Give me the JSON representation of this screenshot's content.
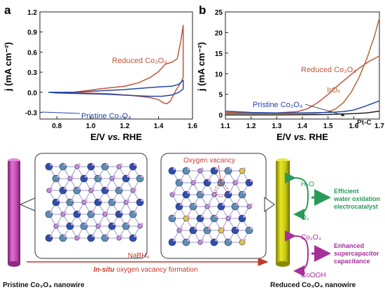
{
  "colors": {
    "reduced": "#c0573a",
    "pristine": "#2646a8",
    "iro": "#b06a38",
    "ptc": "#222222",
    "green": "#2a9a5a",
    "purple": "#a6309a",
    "red_label": "#d23a3a",
    "axis": "#222222"
  },
  "chart_data": [
    {
      "type": "line",
      "panel_label": "a",
      "xlabel_main": "E/V ",
      "xlabel_vs": "vs.",
      "xlabel_end": " RHE",
      "ylabel": "j (mA cm⁻²)",
      "xlim": [
        0.7,
        1.6
      ],
      "ylim": [
        -0.4,
        1.2
      ],
      "xticks": [
        "0.8",
        "1.0",
        "1.2",
        "1.4",
        "1.6"
      ],
      "xtick_values": [
        0.8,
        1.0,
        1.2,
        1.4,
        1.6
      ],
      "yticks": [
        "-0.3",
        "0.0",
        "0.3",
        "0.6",
        "0.9",
        "1.2"
      ],
      "ytick_values": [
        -0.3,
        0.0,
        0.3,
        0.6,
        0.9,
        1.2
      ],
      "series": [
        {
          "name": "Reduced Co₃O₄",
          "color_key": "reduced",
          "x": [
            0.75,
            0.9,
            1.05,
            1.2,
            1.28,
            1.35,
            1.4,
            1.44,
            1.48,
            1.51,
            1.53,
            1.545,
            1.545,
            1.53,
            1.5,
            1.47,
            1.45,
            1.43,
            1.4,
            1.35,
            1.25,
            1.1,
            0.95,
            0.8,
            0.75
          ],
          "y": [
            0.0,
            0.0,
            0.05,
            0.09,
            0.14,
            0.22,
            0.31,
            0.42,
            0.45,
            0.5,
            0.75,
            1.0,
            0.22,
            0.14,
            0.02,
            -0.13,
            -0.17,
            -0.16,
            -0.11,
            -0.08,
            -0.05,
            -0.02,
            -0.01,
            0.0,
            0.0
          ]
        },
        {
          "name": "Pristine Co₃O₄",
          "color_key": "pristine",
          "x": [
            0.75,
            0.9,
            1.05,
            1.2,
            1.3,
            1.4,
            1.48,
            1.52,
            1.545,
            1.545,
            1.52,
            1.48,
            1.42,
            1.35,
            1.25,
            1.1,
            0.95,
            0.8,
            0.75
          ],
          "y": [
            0.0,
            0.0,
            0.02,
            0.04,
            0.06,
            0.08,
            0.09,
            0.12,
            0.18,
            0.05,
            0.0,
            -0.04,
            -0.06,
            -0.06,
            -0.05,
            -0.03,
            -0.02,
            -0.01,
            0.0
          ]
        }
      ],
      "annotations": [
        {
          "text": "Reduced Co₃O₄",
          "color_key": "reduced"
        },
        {
          "text": "Pristine Co₃O₄",
          "color_key": "pristine"
        }
      ]
    },
    {
      "type": "line",
      "panel_label": "b",
      "xlabel_main": "E/V ",
      "xlabel_vs": "vs.",
      "xlabel_end": " RHE",
      "ylabel": "j (mA cm⁻²)",
      "xlim": [
        1.1,
        1.7
      ],
      "ylim": [
        -1,
        25
      ],
      "xticks": [
        "1.1",
        "1.2",
        "1.3",
        "1.4",
        "1.5",
        "1.6",
        "1.7"
      ],
      "xtick_values": [
        1.1,
        1.2,
        1.3,
        1.4,
        1.5,
        1.6,
        1.7
      ],
      "yticks": [
        "0",
        "5",
        "10",
        "15",
        "20",
        "25"
      ],
      "ytick_values": [
        0,
        5,
        10,
        15,
        20,
        25
      ],
      "series": [
        {
          "name": "Reduced Co₃O₄",
          "color_key": "reduced",
          "x": [
            1.1,
            1.2,
            1.3,
            1.38,
            1.42,
            1.46,
            1.5,
            1.54,
            1.58,
            1.62,
            1.66,
            1.7
          ],
          "y": [
            0.6,
            0.5,
            0.5,
            0.8,
            1.5,
            3.0,
            5.0,
            7.2,
            9.3,
            11.3,
            13.0,
            14.3
          ]
        },
        {
          "name": "IrOₓ",
          "color_key": "iro",
          "x": [
            1.1,
            1.3,
            1.45,
            1.5,
            1.53,
            1.56,
            1.59,
            1.62,
            1.65,
            1.68,
            1.7
          ],
          "y": [
            0.3,
            0.3,
            0.4,
            0.7,
            1.5,
            3.0,
            5.5,
            9.0,
            13.5,
            19.0,
            23.5
          ]
        },
        {
          "name": "Pristine Co₃O₄",
          "color_key": "pristine",
          "x": [
            1.1,
            1.2,
            1.3,
            1.4,
            1.5,
            1.56,
            1.6,
            1.64,
            1.67,
            1.7
          ],
          "y": [
            0.9,
            0.6,
            0.5,
            0.5,
            0.6,
            0.8,
            1.2,
            2.0,
            2.7,
            3.4
          ]
        },
        {
          "name": "Pt-C",
          "color_key": "ptc",
          "x": [
            1.1,
            1.3,
            1.5,
            1.6,
            1.65,
            1.7
          ],
          "y": [
            0.0,
            0.0,
            0.1,
            0.3,
            0.5,
            0.9
          ]
        }
      ],
      "annotations": [
        {
          "text": "Reduced Co₃O₄",
          "color_key": "reduced"
        },
        {
          "text": "IrOₓ",
          "color_key": "iro"
        },
        {
          "text": "Pristine Co₃O₄",
          "color_key": "pristine"
        },
        {
          "text": "Pt-C",
          "color_key": "ptc"
        }
      ]
    }
  ],
  "diagram": {
    "left_rod_label": "Pristine Co₃O₄ nanowire",
    "right_rod_label": "Reduced Co₃O₄ nanowire",
    "reagent": "NaBH₄",
    "process_prefix": "In-situ",
    "process_rest": " oxygen vacancy formation",
    "vacancy_label": "Oxygen vacancy",
    "h2o": "H₂O",
    "o2": "O₂",
    "co3o4": "Co₃O₄",
    "cooh": "CoOOH",
    "oer_line1": "Efficient",
    "oer_line2": "water oxidation",
    "oer_line3": "electrocatalyst",
    "cap_line1": "Enhanced",
    "cap_line2": "supercapacitor",
    "cap_line3": "capacitance"
  }
}
